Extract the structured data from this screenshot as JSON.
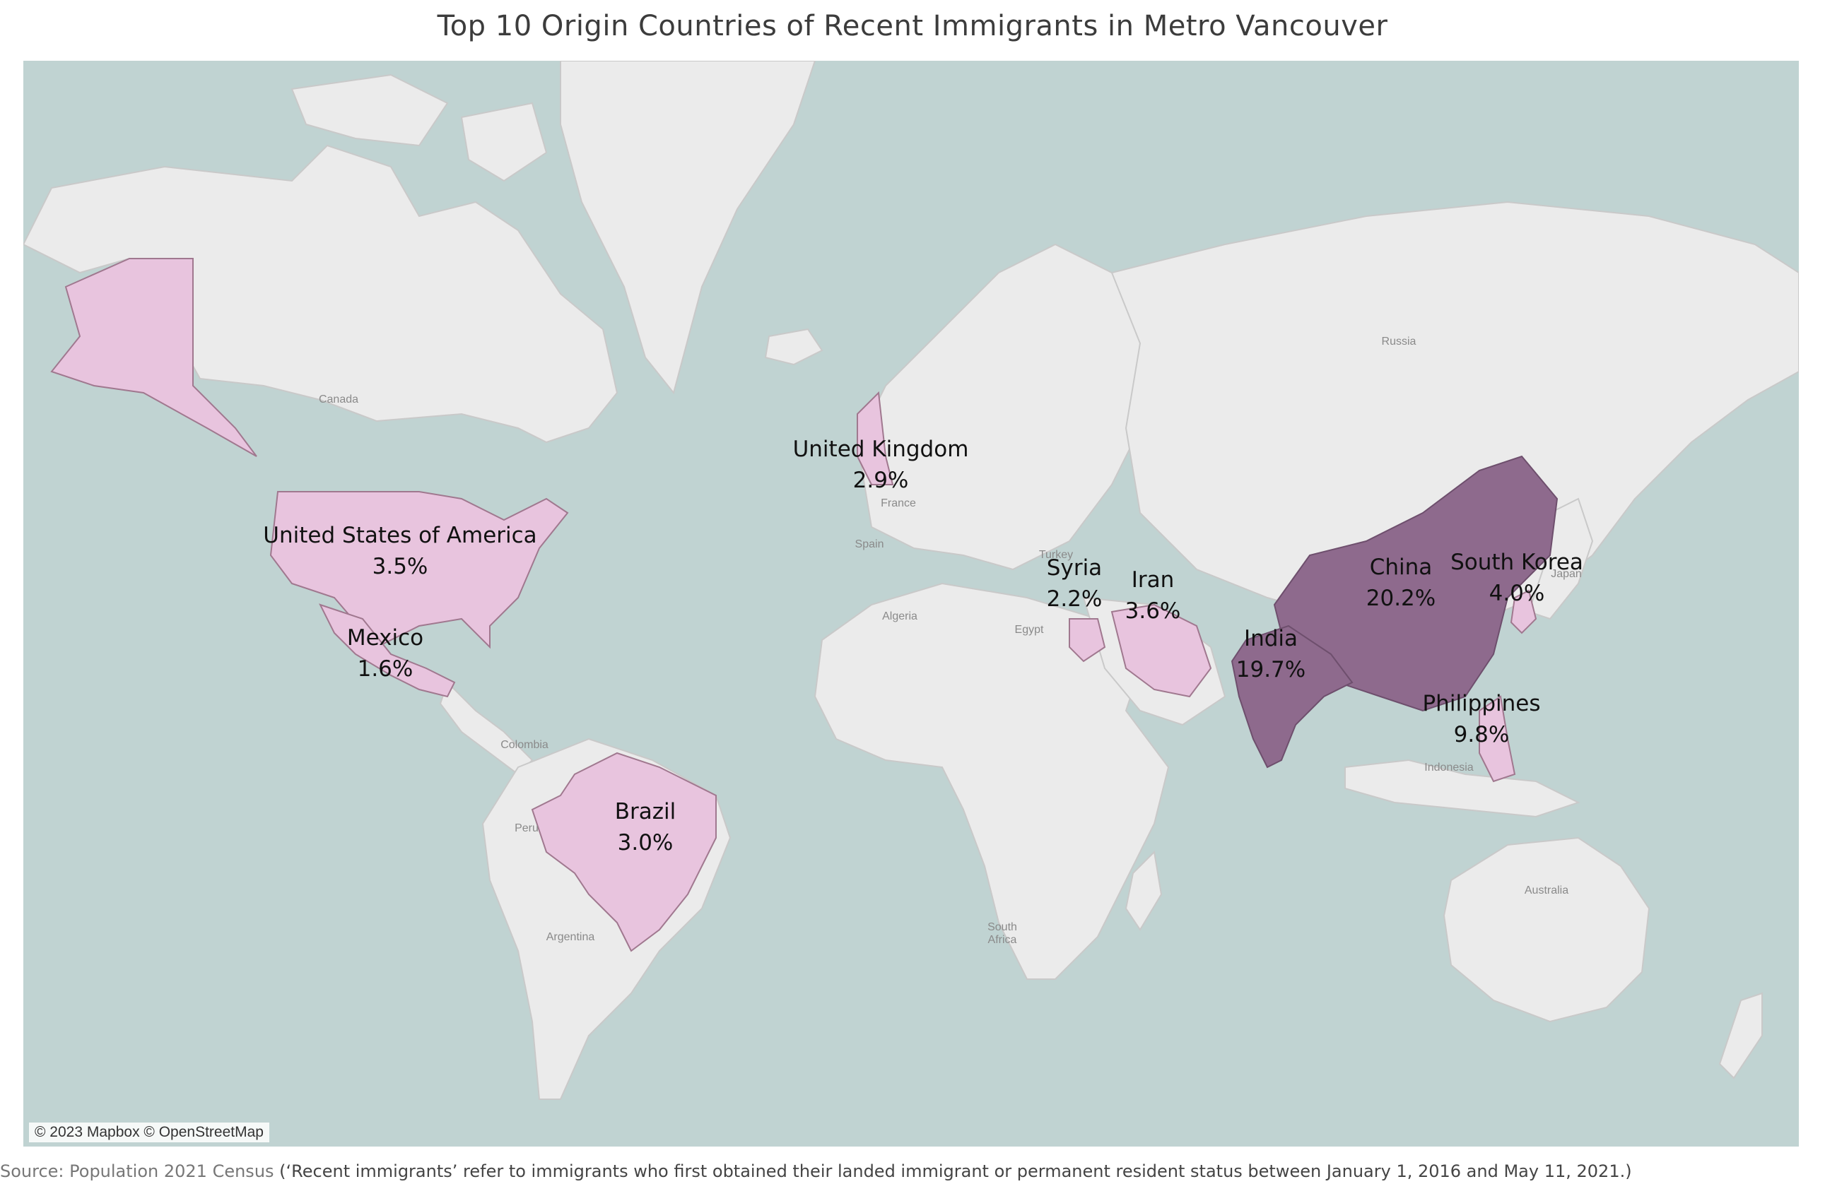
{
  "title": "Top 10 Origin Countries of Recent Immigrants in Metro Vancouver",
  "map": {
    "attribution": "© 2023 Mapbox © OpenStreetMap",
    "colors": {
      "ocean": "#c0d3d2",
      "land": "#ebebeb",
      "low": "#e8c4de",
      "high": "#8e6a8d"
    },
    "basemap_labels": [
      "Canada",
      "Russia",
      "France",
      "Spain",
      "Turkey",
      "Algeria",
      "Egypt",
      "Japan",
      "Indonesia",
      "Colombia",
      "Peru",
      "Argentina",
      "South Africa",
      "Australia"
    ],
    "countries": [
      {
        "name": "United States of America",
        "value": "3.5%"
      },
      {
        "name": "Mexico",
        "value": "1.6%"
      },
      {
        "name": "Brazil",
        "value": "3.0%"
      },
      {
        "name": "United Kingdom",
        "value": "2.9%"
      },
      {
        "name": "Syria",
        "value": "2.2%"
      },
      {
        "name": "Iran",
        "value": "3.6%"
      },
      {
        "name": "India",
        "value": "19.7%"
      },
      {
        "name": "China",
        "value": "20.2%"
      },
      {
        "name": "South Korea",
        "value": "4.0%"
      },
      {
        "name": "Philippines",
        "value": "9.8%"
      }
    ]
  },
  "source": {
    "label": "Source: Population 2021 Census",
    "note": " (‘Recent immigrants’ refer to immigrants who first obtained their landed immigrant or permanent resident status between January 1, 2016 and May 11, 2021.)"
  }
}
